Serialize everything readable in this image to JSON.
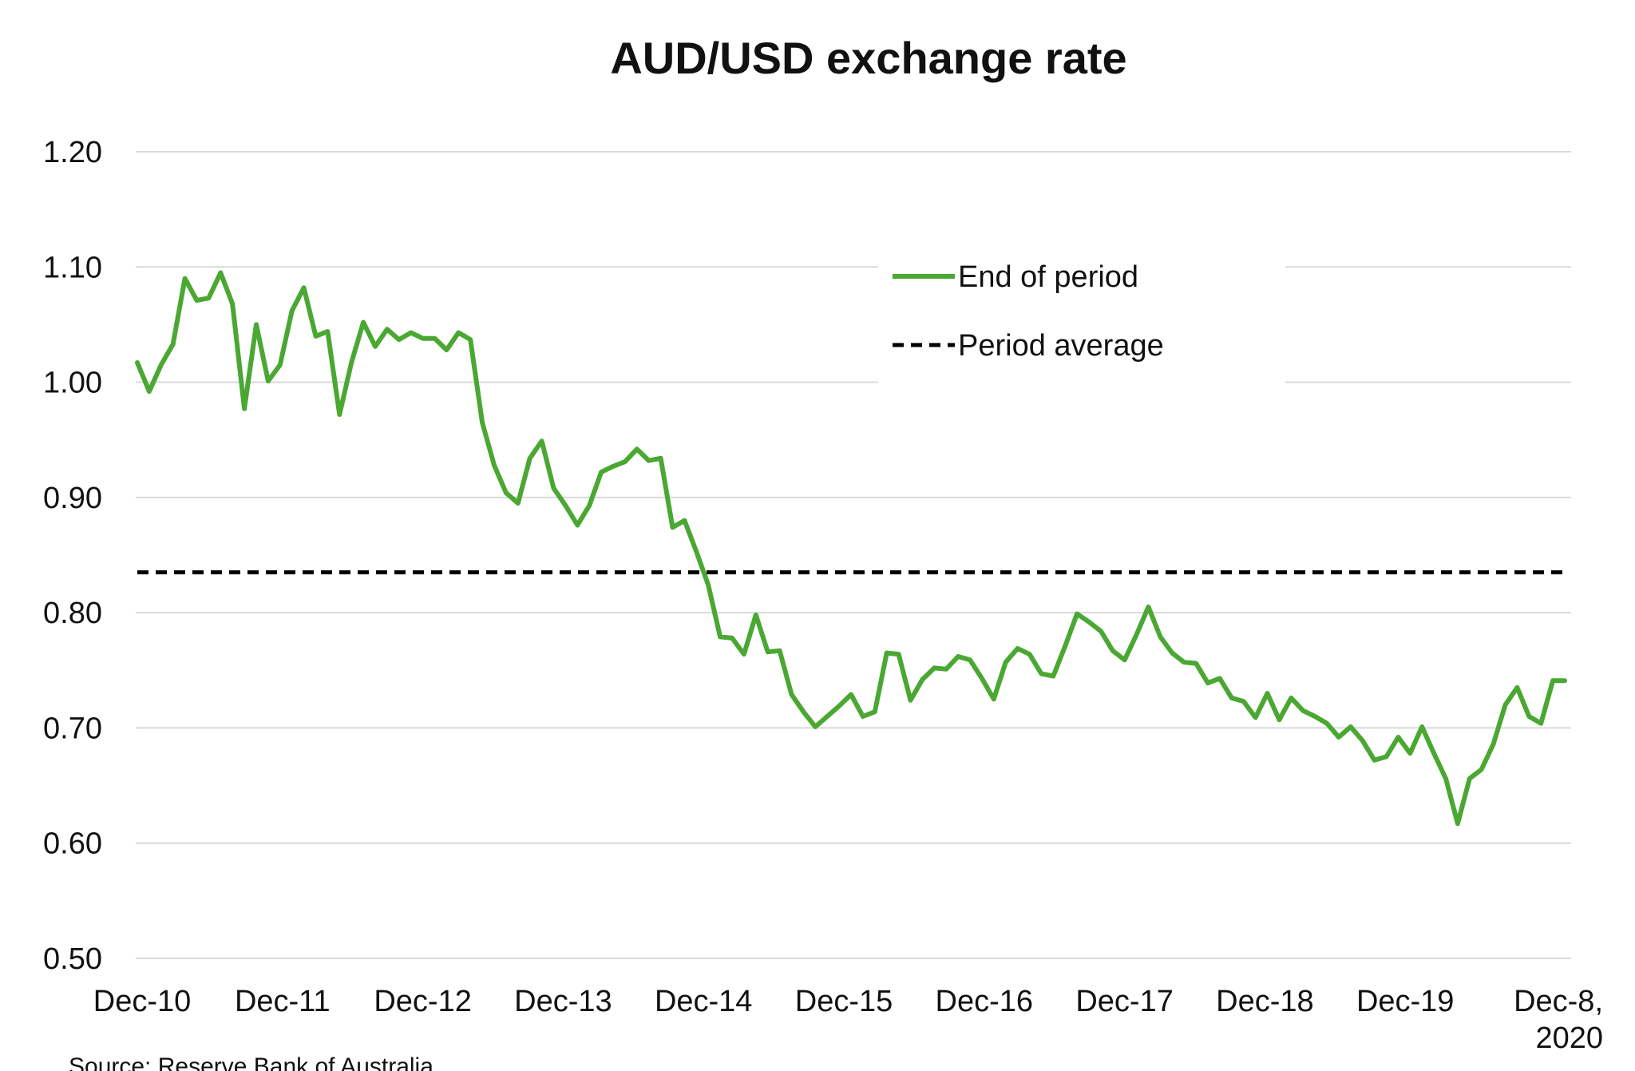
{
  "chart_data": {
    "type": "line",
    "title": "AUD/USD exchange rate",
    "xlabel": "",
    "ylabel": "",
    "ylim": [
      0.5,
      1.2
    ],
    "yticks": [
      "0.50",
      "0.60",
      "0.70",
      "0.80",
      "0.90",
      "1.00",
      "1.10",
      "1.20"
    ],
    "grid": true,
    "legend_position": "top-right",
    "x_tick_labels": [
      [
        "Dec-10"
      ],
      [
        "Dec-11"
      ],
      [
        "Dec-12"
      ],
      [
        "Dec-13"
      ],
      [
        "Dec-14"
      ],
      [
        "Dec-15"
      ],
      [
        "Dec-16"
      ],
      [
        "Dec-17"
      ],
      [
        "Dec-18"
      ],
      [
        "Dec-19"
      ],
      [
        "Dec-8,",
        "2020"
      ]
    ],
    "series": [
      {
        "name": "End of period",
        "style": "solid",
        "color": "#4aa832",
        "values": [
          1.017,
          0.992,
          1.015,
          1.033,
          1.09,
          1.071,
          1.073,
          1.095,
          1.068,
          0.977,
          1.05,
          1.001,
          1.015,
          1.062,
          1.082,
          1.04,
          1.044,
          0.972,
          1.017,
          1.052,
          1.031,
          1.046,
          1.037,
          1.043,
          1.038,
          1.038,
          1.028,
          1.043,
          1.037,
          0.965,
          0.928,
          0.904,
          0.895,
          0.934,
          0.949,
          0.908,
          0.893,
          0.876,
          0.893,
          0.922,
          0.927,
          0.931,
          0.942,
          0.932,
          0.934,
          0.874,
          0.88,
          0.853,
          0.824,
          0.779,
          0.778,
          0.764,
          0.798,
          0.766,
          0.767,
          0.729,
          0.714,
          0.701,
          0.71,
          0.719,
          0.729,
          0.71,
          0.714,
          0.765,
          0.764,
          0.724,
          0.742,
          0.752,
          0.751,
          0.762,
          0.759,
          0.743,
          0.725,
          0.757,
          0.769,
          0.764,
          0.747,
          0.745,
          0.771,
          0.799,
          0.792,
          0.784,
          0.767,
          0.759,
          0.781,
          0.805,
          0.779,
          0.765,
          0.757,
          0.756,
          0.739,
          0.743,
          0.726,
          0.723,
          0.709,
          0.73,
          0.707,
          0.726,
          0.715,
          0.71,
          0.704,
          0.692,
          0.701,
          0.689,
          0.672,
          0.675,
          0.692,
          0.678,
          0.701,
          0.678,
          0.656,
          0.617,
          0.656,
          0.664,
          0.686,
          0.72,
          0.735,
          0.71,
          0.704,
          0.741,
          0.741
        ]
      },
      {
        "name": "Period average",
        "style": "dashed",
        "color": "#000000",
        "values": [
          0.835,
          0.835
        ]
      }
    ],
    "source": "Source: Reserve Bank of Australia"
  }
}
